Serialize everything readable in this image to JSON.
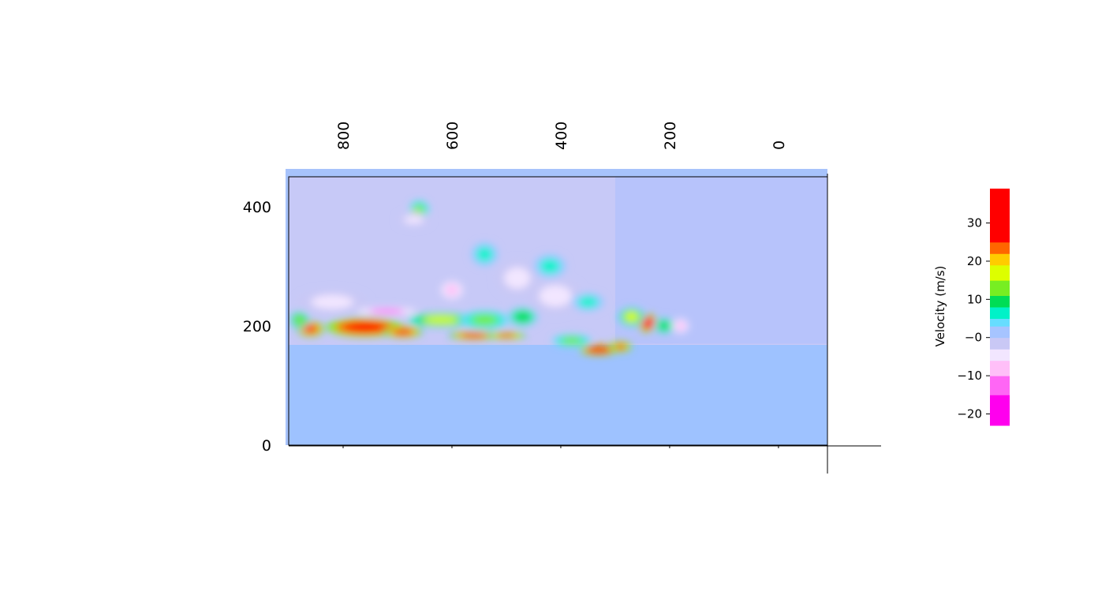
{
  "chart_data": {
    "type": "heatmap",
    "title": "",
    "x_axis": {
      "range": [
        900,
        -90
      ],
      "ticks": [
        800,
        600,
        400,
        200,
        0
      ],
      "tick_labels": [
        "800",
        "600",
        "400",
        "200",
        "0"
      ],
      "label": ""
    },
    "y_axis": {
      "range": [
        0,
        450
      ],
      "ticks": [
        0,
        200,
        400
      ],
      "tick_labels": [
        "0",
        "200",
        "400"
      ],
      "label": ""
    },
    "colorbar": {
      "label": "Velocity (m/s)",
      "range": [
        -23,
        39
      ],
      "ticks": [
        30,
        20,
        10,
        0,
        -10,
        -20
      ],
      "tick_labels": [
        "30",
        "20",
        "10",
        "−0",
        "−10",
        "−20"
      ],
      "bands": [
        {
          "from": -23,
          "to": -15,
          "color": "#ff00ee"
        },
        {
          "from": -15,
          "to": -10,
          "color": "#ff66f5"
        },
        {
          "from": -10,
          "to": -6,
          "color": "#ffbff8"
        },
        {
          "from": -6,
          "to": -3,
          "color": "#f2e6ff"
        },
        {
          "from": -3,
          "to": 0,
          "color": "#c9c8f5"
        },
        {
          "from": 0,
          "to": 3,
          "color": "#a6c4ff"
        },
        {
          "from": 3,
          "to": 5,
          "color": "#66ddff"
        },
        {
          "from": 5,
          "to": 8,
          "color": "#00f2c8"
        },
        {
          "from": 8,
          "to": 11,
          "color": "#00dd55"
        },
        {
          "from": 11,
          "to": 15,
          "color": "#77ee22"
        },
        {
          "from": 15,
          "to": 19,
          "color": "#ddff00"
        },
        {
          "from": 19,
          "to": 22,
          "color": "#ffcc00"
        },
        {
          "from": 22,
          "to": 25,
          "color": "#ff6600"
        },
        {
          "from": 25,
          "to": 39,
          "color": "#ff0000"
        }
      ]
    },
    "background_colors": {
      "lower_layer": "#9ec2ff",
      "upper_field": "#c7c9f7",
      "upper_field_right": "#b3c2fb"
    },
    "blobs": [
      {
        "x": 760,
        "y": 198,
        "w": 140,
        "h": 32,
        "v": 35
      },
      {
        "x": 690,
        "y": 190,
        "w": 70,
        "h": 20,
        "v": 30
      },
      {
        "x": 860,
        "y": 195,
        "w": 50,
        "h": 26,
        "v": 30
      },
      {
        "x": 560,
        "y": 184,
        "w": 90,
        "h": 14,
        "v": 30
      },
      {
        "x": 500,
        "y": 184,
        "w": 70,
        "h": 12,
        "v": 27
      },
      {
        "x": 620,
        "y": 210,
        "w": 120,
        "h": 22,
        "v": 16
      },
      {
        "x": 540,
        "y": 210,
        "w": 90,
        "h": 30,
        "v": 12
      },
      {
        "x": 470,
        "y": 215,
        "w": 60,
        "h": 34,
        "v": 9
      },
      {
        "x": 720,
        "y": 224,
        "w": 110,
        "h": 14,
        "v": -12
      },
      {
        "x": 660,
        "y": 395,
        "w": 35,
        "h": 30,
        "v": 12
      },
      {
        "x": 667,
        "y": 392,
        "w": 14,
        "h": 12,
        "v": 20
      },
      {
        "x": 670,
        "y": 378,
        "w": 60,
        "h": 24,
        "v": -4
      },
      {
        "x": 540,
        "y": 320,
        "w": 50,
        "h": 40,
        "v": 6
      },
      {
        "x": 480,
        "y": 280,
        "w": 80,
        "h": 60,
        "v": -6
      },
      {
        "x": 420,
        "y": 300,
        "w": 60,
        "h": 40,
        "v": 7
      },
      {
        "x": 410,
        "y": 250,
        "w": 100,
        "h": 60,
        "v": -5
      },
      {
        "x": 350,
        "y": 240,
        "w": 60,
        "h": 30,
        "v": 5
      },
      {
        "x": 330,
        "y": 160,
        "w": 70,
        "h": 18,
        "v": 35
      },
      {
        "x": 290,
        "y": 165,
        "w": 40,
        "h": 18,
        "v": 28
      },
      {
        "x": 380,
        "y": 175,
        "w": 70,
        "h": 20,
        "v": 12
      },
      {
        "x": 240,
        "y": 205,
        "w": 40,
        "h": 30,
        "v": 35
      },
      {
        "x": 270,
        "y": 215,
        "w": 50,
        "h": 32,
        "v": 15
      },
      {
        "x": 210,
        "y": 200,
        "w": 40,
        "h": 30,
        "v": 8
      },
      {
        "x": 180,
        "y": 200,
        "w": 30,
        "h": 24,
        "v": -8
      },
      {
        "x": 880,
        "y": 210,
        "w": 35,
        "h": 28,
        "v": 14
      },
      {
        "x": 600,
        "y": 260,
        "w": 40,
        "h": 30,
        "v": -7
      },
      {
        "x": 820,
        "y": 240,
        "w": 130,
        "h": 40,
        "v": -5
      }
    ]
  }
}
